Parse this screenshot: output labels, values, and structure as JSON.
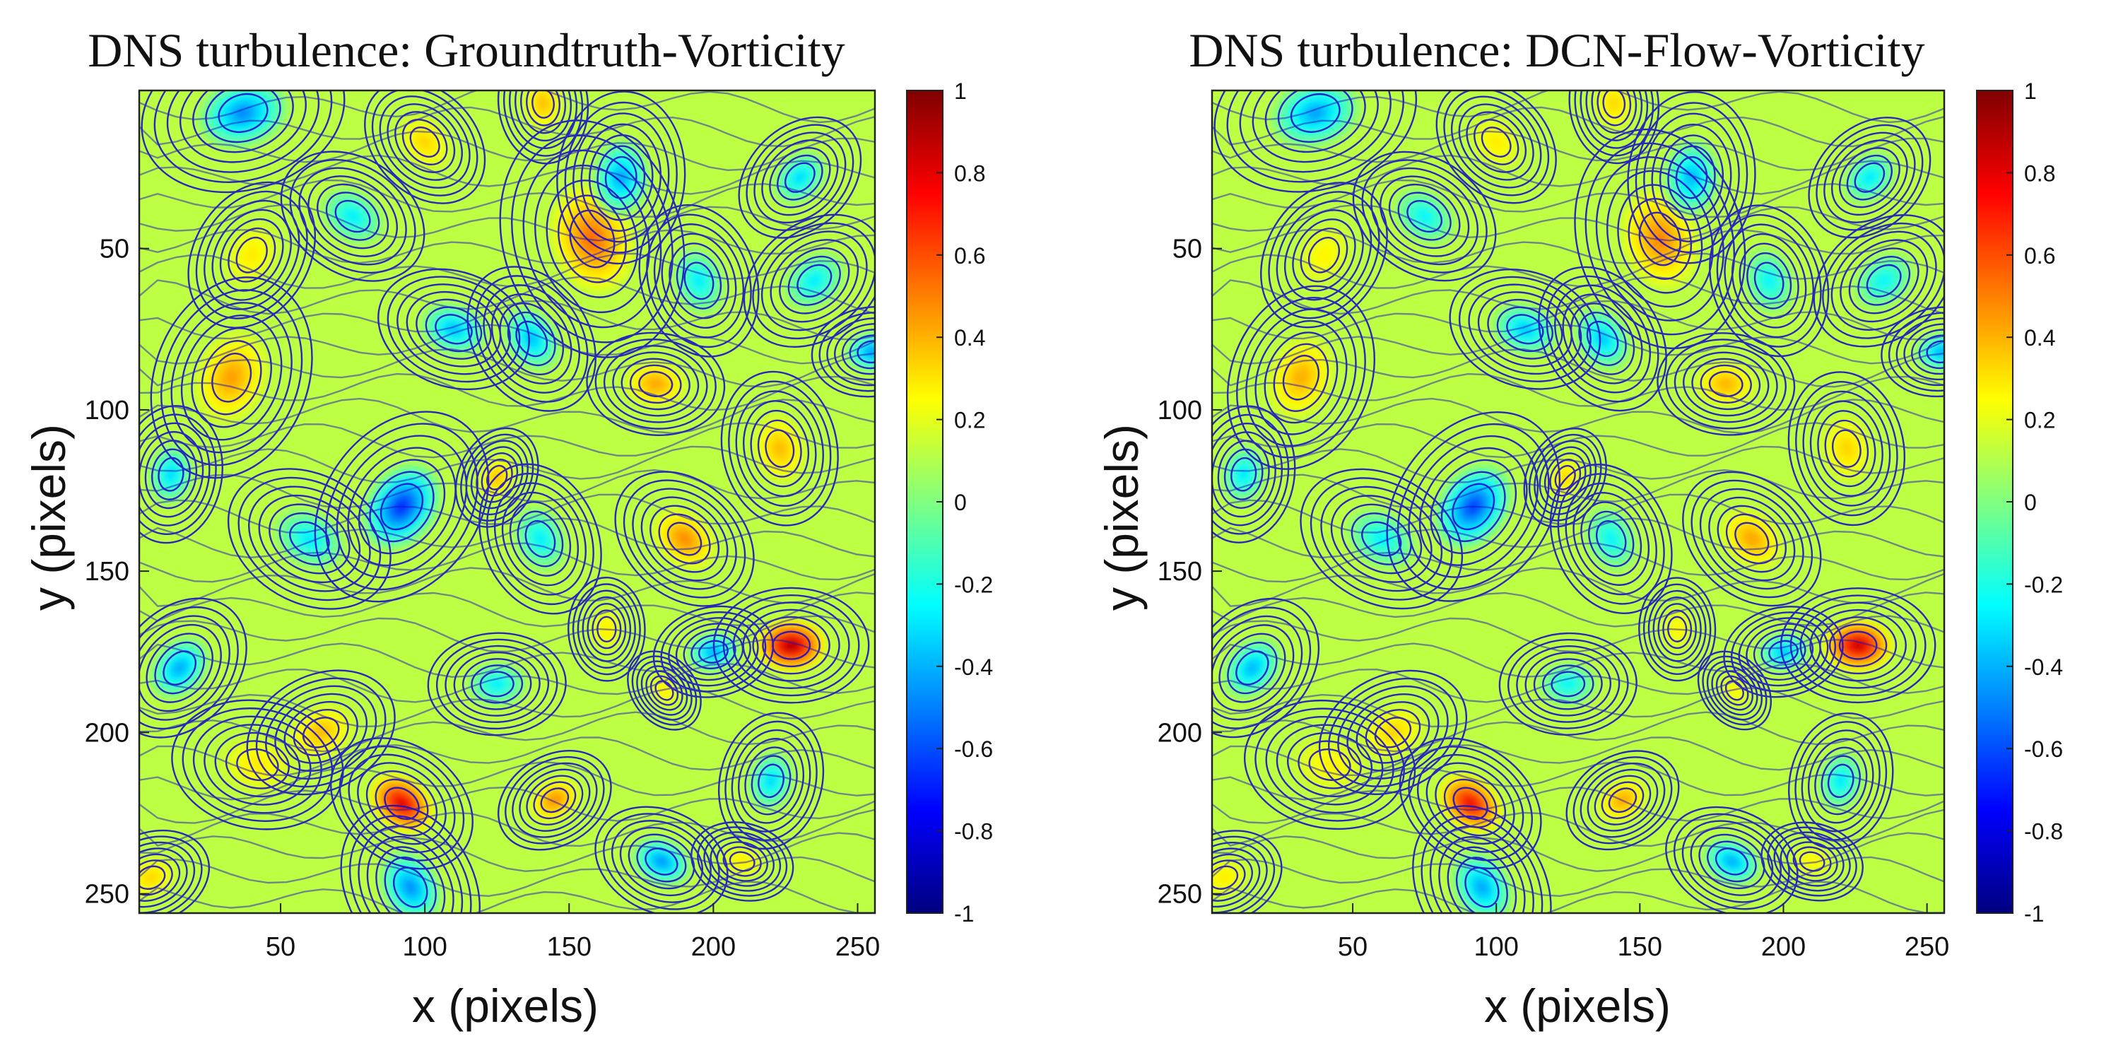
{
  "chart_data": [
    {
      "type": "heatmap",
      "subtype": "vorticity field with streamlines",
      "title": "DNS turbulence:  Groundtruth-Vorticity",
      "xlabel": "x (pixels)",
      "ylabel": "y (pixels)",
      "xlim": [
        1,
        256
      ],
      "ylim": [
        1,
        256
      ],
      "y_direction": "reversed",
      "xticks": [
        50,
        100,
        150,
        200,
        250
      ],
      "yticks": [
        50,
        100,
        150,
        200,
        250
      ],
      "colormap": "jet",
      "clim": [
        -1,
        1
      ],
      "colorbar_ticks": [
        1,
        0.8,
        0.6,
        0.4,
        0.2,
        0,
        -0.2,
        -0.4,
        -0.6,
        -0.8,
        -1
      ],
      "streamline_color": "#1a10c8",
      "vortices": [
        {
          "x": 227,
          "y": 173,
          "w": 0.95,
          "r": 9
        },
        {
          "x": 92,
          "y": 222,
          "w": 0.85,
          "r": 9
        },
        {
          "x": 158,
          "y": 47,
          "w": 0.55,
          "r": 14
        },
        {
          "x": 33,
          "y": 90,
          "w": 0.45,
          "r": 12
        },
        {
          "x": 145,
          "y": 221,
          "w": 0.5,
          "r": 7
        },
        {
          "x": 180,
          "y": 92,
          "w": 0.45,
          "r": 8
        },
        {
          "x": 190,
          "y": 140,
          "w": 0.5,
          "r": 9
        },
        {
          "x": 223,
          "y": 112,
          "w": 0.4,
          "r": 9
        },
        {
          "x": 125,
          "y": 121,
          "w": 0.4,
          "r": 6
        },
        {
          "x": 64,
          "y": 200,
          "w": 0.4,
          "r": 9
        },
        {
          "x": 42,
          "y": 210,
          "w": 0.3,
          "r": 10
        },
        {
          "x": 100,
          "y": 17,
          "w": 0.35,
          "r": 8
        },
        {
          "x": 141,
          "y": 5,
          "w": 0.4,
          "r": 7
        },
        {
          "x": 40,
          "y": 52,
          "w": 0.3,
          "r": 9
        },
        {
          "x": 5,
          "y": 245,
          "w": 0.35,
          "r": 7
        },
        {
          "x": 210,
          "y": 240,
          "w": 0.3,
          "r": 6
        },
        {
          "x": 183,
          "y": 187,
          "w": 0.3,
          "r": 5
        },
        {
          "x": 163,
          "y": 168,
          "w": 0.3,
          "r": 6
        },
        {
          "x": 92,
          "y": 130,
          "w": -0.7,
          "r": 12
        },
        {
          "x": 37,
          "y": 8,
          "w": -0.5,
          "r": 12
        },
        {
          "x": 110,
          "y": 75,
          "w": -0.4,
          "r": 9
        },
        {
          "x": 137,
          "y": 78,
          "w": -0.4,
          "r": 9
        },
        {
          "x": 168,
          "y": 28,
          "w": -0.45,
          "r": 10
        },
        {
          "x": 15,
          "y": 180,
          "w": -0.45,
          "r": 9
        },
        {
          "x": 200,
          "y": 175,
          "w": -0.45,
          "r": 7
        },
        {
          "x": 182,
          "y": 240,
          "w": -0.5,
          "r": 8
        },
        {
          "x": 95,
          "y": 248,
          "w": -0.5,
          "r": 10
        },
        {
          "x": 12,
          "y": 120,
          "w": -0.35,
          "r": 8
        },
        {
          "x": 230,
          "y": 28,
          "w": -0.35,
          "r": 8
        },
        {
          "x": 255,
          "y": 82,
          "w": -0.5,
          "r": 7
        },
        {
          "x": 60,
          "y": 140,
          "w": -0.3,
          "r": 10
        },
        {
          "x": 140,
          "y": 140,
          "w": -0.3,
          "r": 9
        },
        {
          "x": 220,
          "y": 215,
          "w": -0.35,
          "r": 8
        },
        {
          "x": 235,
          "y": 60,
          "w": -0.3,
          "r": 9
        },
        {
          "x": 125,
          "y": 185,
          "w": -0.3,
          "r": 8
        },
        {
          "x": 75,
          "y": 40,
          "w": -0.3,
          "r": 9
        },
        {
          "x": 195,
          "y": 60,
          "w": -0.3,
          "r": 9
        }
      ]
    },
    {
      "type": "heatmap",
      "subtype": "vorticity field with streamlines",
      "title": "DNS turbulence:  DCN-Flow-Vorticity",
      "xlabel": "x (pixels)",
      "ylabel": "y (pixels)",
      "xlim": [
        1,
        256
      ],
      "ylim": [
        1,
        256
      ],
      "y_direction": "reversed",
      "xticks": [
        50,
        100,
        150,
        200,
        250
      ],
      "yticks": [
        50,
        100,
        150,
        200,
        250
      ],
      "colormap": "jet",
      "clim": [
        -1,
        1
      ],
      "colorbar_ticks": [
        1,
        0.8,
        0.6,
        0.4,
        0.2,
        0,
        -0.2,
        -0.4,
        -0.6,
        -0.8,
        -1
      ],
      "streamline_color": "#1a10c8",
      "vortices": [
        {
          "x": 226,
          "y": 173,
          "w": 0.9,
          "r": 9
        },
        {
          "x": 91,
          "y": 222,
          "w": 0.8,
          "r": 9
        },
        {
          "x": 157,
          "y": 47,
          "w": 0.5,
          "r": 13
        },
        {
          "x": 32,
          "y": 90,
          "w": 0.42,
          "r": 11
        },
        {
          "x": 144,
          "y": 221,
          "w": 0.45,
          "r": 7
        },
        {
          "x": 180,
          "y": 92,
          "w": 0.42,
          "r": 8
        },
        {
          "x": 189,
          "y": 140,
          "w": 0.45,
          "r": 9
        },
        {
          "x": 222,
          "y": 112,
          "w": 0.35,
          "r": 9
        },
        {
          "x": 124,
          "y": 121,
          "w": 0.35,
          "r": 6
        },
        {
          "x": 64,
          "y": 200,
          "w": 0.35,
          "r": 9
        },
        {
          "x": 42,
          "y": 210,
          "w": 0.28,
          "r": 10
        },
        {
          "x": 100,
          "y": 17,
          "w": 0.3,
          "r": 8
        },
        {
          "x": 141,
          "y": 5,
          "w": 0.35,
          "r": 7
        },
        {
          "x": 40,
          "y": 52,
          "w": 0.28,
          "r": 9
        },
        {
          "x": 5,
          "y": 245,
          "w": 0.3,
          "r": 7
        },
        {
          "x": 210,
          "y": 240,
          "w": 0.28,
          "r": 6
        },
        {
          "x": 183,
          "y": 187,
          "w": 0.28,
          "r": 5
        },
        {
          "x": 163,
          "y": 168,
          "w": 0.28,
          "r": 6
        },
        {
          "x": 92,
          "y": 130,
          "w": -0.65,
          "r": 12
        },
        {
          "x": 37,
          "y": 8,
          "w": -0.45,
          "r": 12
        },
        {
          "x": 110,
          "y": 75,
          "w": -0.38,
          "r": 9
        },
        {
          "x": 137,
          "y": 78,
          "w": -0.38,
          "r": 9
        },
        {
          "x": 168,
          "y": 28,
          "w": -0.42,
          "r": 10
        },
        {
          "x": 15,
          "y": 180,
          "w": -0.42,
          "r": 9
        },
        {
          "x": 200,
          "y": 175,
          "w": -0.4,
          "r": 7
        },
        {
          "x": 182,
          "y": 240,
          "w": -0.45,
          "r": 8
        },
        {
          "x": 95,
          "y": 248,
          "w": -0.45,
          "r": 10
        },
        {
          "x": 12,
          "y": 120,
          "w": -0.32,
          "r": 8
        },
        {
          "x": 230,
          "y": 28,
          "w": -0.32,
          "r": 8
        },
        {
          "x": 255,
          "y": 82,
          "w": -0.45,
          "r": 7
        },
        {
          "x": 60,
          "y": 140,
          "w": -0.28,
          "r": 10
        },
        {
          "x": 140,
          "y": 140,
          "w": -0.28,
          "r": 9
        },
        {
          "x": 220,
          "y": 215,
          "w": -0.32,
          "r": 8
        },
        {
          "x": 235,
          "y": 60,
          "w": -0.28,
          "r": 9
        },
        {
          "x": 125,
          "y": 185,
          "w": -0.28,
          "r": 8
        },
        {
          "x": 75,
          "y": 40,
          "w": -0.28,
          "r": 9
        },
        {
          "x": 195,
          "y": 60,
          "w": -0.28,
          "r": 9
        }
      ]
    }
  ]
}
